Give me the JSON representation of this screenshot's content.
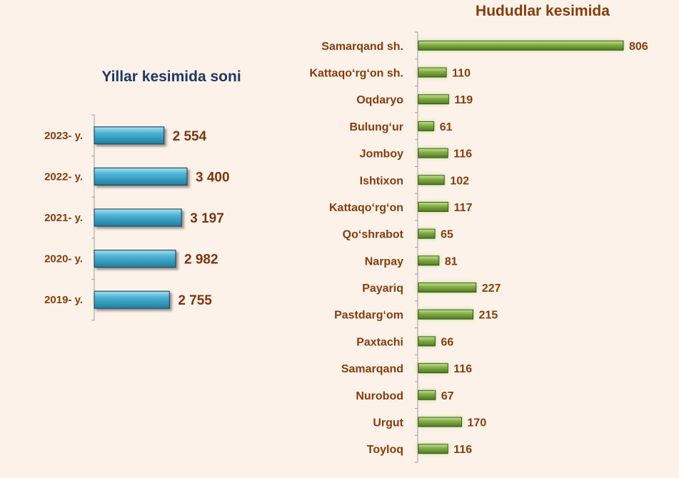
{
  "colors": {
    "background": "#fdf2e9",
    "left_bar": "#3fa7c7",
    "right_bar": "#7aa33a",
    "label_text": "#843c0c",
    "left_title": "#1f3864"
  },
  "chart_data": [
    {
      "type": "bar",
      "orientation": "horizontal",
      "title": "Yillar kesimida soni",
      "categories": [
        "2023- y.",
        "2022- y.",
        "2021- y.",
        "2020- y.",
        "2019- y."
      ],
      "values": [
        2554,
        3400,
        3197,
        2982,
        2755
      ],
      "value_labels": [
        "2 554",
        "3 400",
        "3 197",
        "2 982",
        "2 755"
      ],
      "xlim": [
        0,
        3600
      ],
      "grid": false,
      "legend": "none"
    },
    {
      "type": "bar",
      "orientation": "horizontal",
      "title": "Hududlar kesimida",
      "categories": [
        "Samarqand sh.",
        "Kattaqo‘rg‘on sh.",
        "Oqdaryo",
        "Bulung‘ur",
        "Jomboy",
        "Ishtixon",
        "Kattaqo‘rg‘on",
        "Qo‘shrabot",
        "Narpay",
        "Payariq",
        "Pastdarg‘om",
        "Paxtachi",
        "Samarqand",
        "Nurobod",
        "Urgut",
        "Toyloq"
      ],
      "values": [
        806,
        110,
        119,
        61,
        116,
        102,
        117,
        65,
        81,
        227,
        215,
        66,
        116,
        67,
        170,
        116
      ],
      "value_labels": [
        "806",
        "110",
        "119",
        "61",
        "116",
        "102",
        "117",
        "65",
        "81",
        "227",
        "215",
        "66",
        "116",
        "67",
        "170",
        "116"
      ],
      "xlim": [
        0,
        806
      ],
      "grid": false,
      "legend": "none"
    }
  ]
}
